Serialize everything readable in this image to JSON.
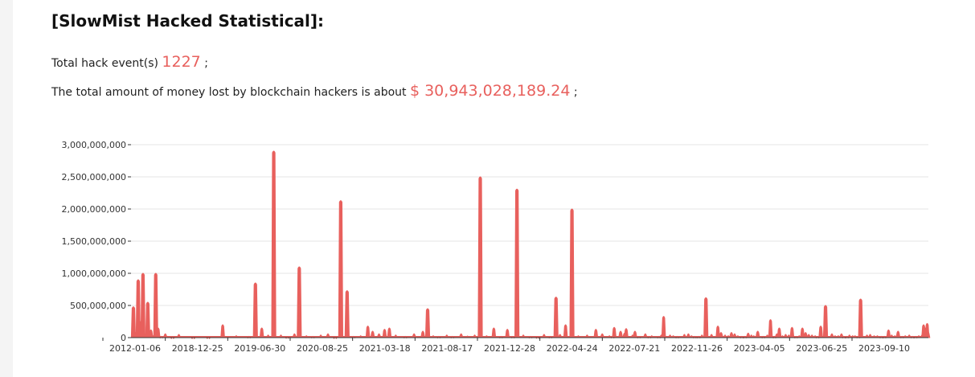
{
  "heading": "[SlowMist Hacked Statistical]:",
  "stats": {
    "events_label": "Total hack event(s)",
    "events_value": "1227",
    "events_suffix": ";",
    "amount_label": "The total amount of money lost by blockchain hackers is about",
    "amount_value": "$ 30,943,028,189.24",
    "amount_suffix": ";"
  },
  "colors": {
    "accent": "#e8605d",
    "series": "#e8605d",
    "grid": "#e6e6e6",
    "axis": "#333333"
  },
  "chart_data": {
    "type": "area",
    "title": "",
    "xlabel": "",
    "ylabel": "",
    "ylim": [
      0,
      3000000000
    ],
    "yticks": [
      0,
      500000000,
      1000000000,
      1500000000,
      2000000000,
      2500000000,
      3000000000
    ],
    "ytick_labels": [
      "0",
      "500,000,000",
      "1,000,000,000",
      "1,500,000,000",
      "2,000,000,000",
      "2,500,000,000",
      "3,000,000,000"
    ],
    "xtick_labels": [
      "2012-01-06",
      "2018-12-25",
      "2019-06-30",
      "2020-08-25",
      "2021-03-18",
      "2021-08-17",
      "2021-12-28",
      "2022-04-24",
      "2022-07-21",
      "2022-11-26",
      "2023-04-05",
      "2023-06-25",
      "2023-09-10"
    ],
    "grid": true,
    "legend": "none",
    "x_domain": [
      0,
      100
    ],
    "spikes": [
      [
        0.3,
        480000000
      ],
      [
        0.6,
        80000000
      ],
      [
        0.9,
        900000000
      ],
      [
        1.2,
        250000000
      ],
      [
        1.5,
        1000000000
      ],
      [
        1.8,
        60000000
      ],
      [
        2.1,
        550000000
      ],
      [
        2.5,
        120000000
      ],
      [
        2.8,
        30000000
      ],
      [
        3.1,
        1000000000
      ],
      [
        3.4,
        150000000
      ],
      [
        3.8,
        20000000
      ],
      [
        4.3,
        60000000
      ],
      [
        5.2,
        10000000
      ],
      [
        6.0,
        50000000
      ],
      [
        7.8,
        8000000
      ],
      [
        9.7,
        10000000
      ],
      [
        11.5,
        200000000
      ],
      [
        13.2,
        30000000
      ],
      [
        14.8,
        20000000
      ],
      [
        15.6,
        850000000
      ],
      [
        16.4,
        150000000
      ],
      [
        17.2,
        40000000
      ],
      [
        17.9,
        2900000000
      ],
      [
        18.8,
        40000000
      ],
      [
        19.6,
        15000000
      ],
      [
        20.5,
        60000000
      ],
      [
        21.1,
        1100000000
      ],
      [
        22.0,
        30000000
      ],
      [
        22.8,
        20000000
      ],
      [
        23.8,
        40000000
      ],
      [
        24.7,
        60000000
      ],
      [
        25.6,
        10000000
      ],
      [
        26.3,
        2130000000
      ],
      [
        27.1,
        730000000
      ],
      [
        27.9,
        20000000
      ],
      [
        28.8,
        30000000
      ],
      [
        29.7,
        180000000
      ],
      [
        30.3,
        100000000
      ],
      [
        31.1,
        60000000
      ],
      [
        31.8,
        130000000
      ],
      [
        32.4,
        150000000
      ],
      [
        33.2,
        40000000
      ],
      [
        34.4,
        20000000
      ],
      [
        35.5,
        60000000
      ],
      [
        36.6,
        100000000
      ],
      [
        37.2,
        450000000
      ],
      [
        37.9,
        30000000
      ],
      [
        38.6,
        20000000
      ],
      [
        39.6,
        40000000
      ],
      [
        40.3,
        20000000
      ],
      [
        41.4,
        60000000
      ],
      [
        42.2,
        25000000
      ],
      [
        43.1,
        40000000
      ],
      [
        43.8,
        2500000000
      ],
      [
        44.6,
        30000000
      ],
      [
        45.5,
        150000000
      ],
      [
        46.4,
        20000000
      ],
      [
        47.2,
        130000000
      ],
      [
        47.9,
        20000000
      ],
      [
        48.4,
        2310000000
      ],
      [
        49.2,
        40000000
      ],
      [
        50.1,
        20000000
      ],
      [
        51.0,
        15000000
      ],
      [
        51.8,
        50000000
      ],
      [
        52.6,
        20000000
      ],
      [
        53.3,
        630000000
      ],
      [
        53.8,
        50000000
      ],
      [
        54.5,
        200000000
      ],
      [
        55.3,
        2000000000
      ],
      [
        56.1,
        30000000
      ],
      [
        57.2,
        40000000
      ],
      [
        58.3,
        130000000
      ],
      [
        59.1,
        60000000
      ],
      [
        60.0,
        30000000
      ],
      [
        60.6,
        160000000
      ],
      [
        61.4,
        100000000
      ],
      [
        62.1,
        140000000
      ],
      [
        62.9,
        40000000
      ],
      [
        63.7,
        20000000
      ],
      [
        64.5,
        60000000
      ],
      [
        65.3,
        30000000
      ],
      [
        66.2,
        20000000
      ],
      [
        66.8,
        330000000
      ],
      [
        67.6,
        40000000
      ],
      [
        68.5,
        20000000
      ],
      [
        69.4,
        50000000
      ],
      [
        70.3,
        30000000
      ],
      [
        71.2,
        20000000
      ],
      [
        72.1,
        620000000
      ],
      [
        72.8,
        50000000
      ],
      [
        73.6,
        180000000
      ],
      [
        74.5,
        40000000
      ],
      [
        75.3,
        80000000
      ],
      [
        76.1,
        30000000
      ],
      [
        77.0,
        20000000
      ],
      [
        77.8,
        40000000
      ],
      [
        78.6,
        100000000
      ],
      [
        79.3,
        20000000
      ],
      [
        80.2,
        280000000
      ],
      [
        81.0,
        60000000
      ],
      [
        81.7,
        30000000
      ],
      [
        82.5,
        40000000
      ],
      [
        83.4,
        20000000
      ],
      [
        84.2,
        150000000
      ],
      [
        85.0,
        50000000
      ],
      [
        85.8,
        30000000
      ],
      [
        86.5,
        180000000
      ],
      [
        87.1,
        500000000
      ],
      [
        87.9,
        60000000
      ],
      [
        88.7,
        30000000
      ],
      [
        89.4,
        20000000
      ],
      [
        90.1,
        40000000
      ],
      [
        90.8,
        30000000
      ],
      [
        91.5,
        600000000
      ],
      [
        92.3,
        40000000
      ],
      [
        93.2,
        30000000
      ],
      [
        94.1,
        20000000
      ],
      [
        95.0,
        120000000
      ],
      [
        95.8,
        30000000
      ],
      [
        96.7,
        20000000
      ],
      [
        97.6,
        40000000
      ],
      [
        98.4,
        20000000
      ],
      [
        99.2,
        40000000
      ],
      [
        99.6,
        150000000
      ],
      [
        99.85,
        220000000
      ],
      [
        99.95,
        90000000
      ]
    ],
    "tail_spikes": [
      [
        60.4,
        20000000
      ],
      [
        61.9,
        70000000
      ],
      [
        63.2,
        100000000
      ],
      [
        65.0,
        20000000
      ],
      [
        66.5,
        40000000
      ],
      [
        68.0,
        30000000
      ],
      [
        69.9,
        60000000
      ],
      [
        70.7,
        20000000
      ],
      [
        71.6,
        40000000
      ],
      [
        74.0,
        80000000
      ],
      [
        74.9,
        30000000
      ],
      [
        75.7,
        60000000
      ],
      [
        76.6,
        20000000
      ],
      [
        77.4,
        70000000
      ],
      [
        78.1,
        30000000
      ],
      [
        79.8,
        40000000
      ],
      [
        80.7,
        20000000
      ],
      [
        81.3,
        150000000
      ],
      [
        82.1,
        50000000
      ],
      [
        82.9,
        160000000
      ],
      [
        83.8,
        30000000
      ],
      [
        84.6,
        80000000
      ],
      [
        85.4,
        40000000
      ],
      [
        86.1,
        20000000
      ],
      [
        88.3,
        30000000
      ],
      [
        89.1,
        60000000
      ],
      [
        89.8,
        20000000
      ],
      [
        90.5,
        30000000
      ],
      [
        91.2,
        20000000
      ],
      [
        92.7,
        50000000
      ],
      [
        93.6,
        30000000
      ],
      [
        94.5,
        20000000
      ],
      [
        95.4,
        40000000
      ],
      [
        96.2,
        100000000
      ],
      [
        97.1,
        30000000
      ],
      [
        98.0,
        20000000
      ],
      [
        98.8,
        30000000
      ],
      [
        99.4,
        200000000
      ]
    ]
  }
}
